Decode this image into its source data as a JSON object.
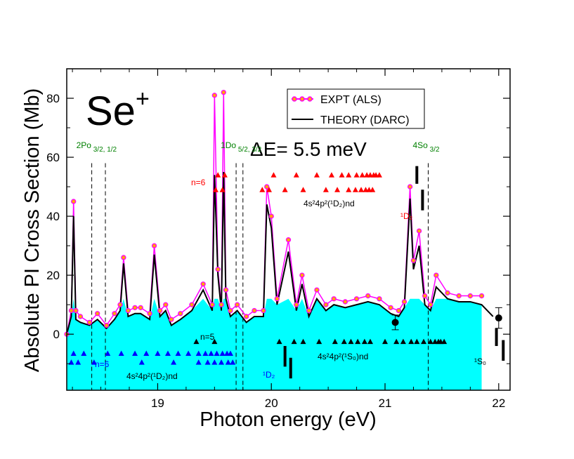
{
  "chart_data": {
    "type": "line",
    "title": "Se",
    "title_superscript": "+",
    "xlabel": "Photon energy (eV)",
    "ylabel": "Absolute PI Cross Section (Mb)",
    "xlim": [
      18.2,
      22.1
    ],
    "ylim": [
      -19,
      90
    ],
    "xticks": [
      19,
      20,
      21,
      22
    ],
    "yticks": [
      0,
      20,
      40,
      60,
      80
    ],
    "resolution_label": "ΔE= 5.5 meV",
    "legend": {
      "position": "top-right",
      "entries": [
        {
          "label": "EXPT (ALS)",
          "color": "#ff00ff",
          "marker": "open-circle-orange"
        },
        {
          "label": "THEORY (DARC)",
          "color": "#000000",
          "marker": "line"
        }
      ]
    },
    "colors": {
      "fill": "#00ffff",
      "expt": "#ff00ff",
      "expt_marker": "#ffa500",
      "theory": "#000000",
      "red_marker": "#ff0000",
      "blue_marker": "#0000ff",
      "green_label": "#008000"
    },
    "series": [
      {
        "name": "EXPT (ALS)",
        "x": [
          18.2,
          18.24,
          18.26,
          18.28,
          18.32,
          18.4,
          18.47,
          18.55,
          18.62,
          18.67,
          18.7,
          18.74,
          18.8,
          18.85,
          18.93,
          18.97,
          19.02,
          19.07,
          19.12,
          19.2,
          19.3,
          19.4,
          19.48,
          19.5,
          19.53,
          19.56,
          19.58,
          19.6,
          19.64,
          19.7,
          19.78,
          19.85,
          19.93,
          19.96,
          20.0,
          20.05,
          20.15,
          20.22,
          20.27,
          20.33,
          20.4,
          20.48,
          20.55,
          20.65,
          20.75,
          20.85,
          20.95,
          21.05,
          21.12,
          21.17,
          21.22,
          21.25,
          21.3,
          21.35,
          21.4,
          21.45,
          21.55,
          21.65,
          21.75,
          21.85
        ],
        "y": [
          0,
          8,
          45,
          8,
          6,
          4,
          7,
          3,
          7,
          10,
          26,
          8,
          9,
          9,
          7,
          30,
          8,
          10,
          5,
          7,
          10,
          17,
          10,
          81,
          22,
          10,
          82,
          15,
          8,
          10,
          6,
          8,
          8,
          50,
          40,
          12,
          32,
          10,
          20,
          8,
          15,
          10,
          12,
          11,
          12,
          13,
          12,
          9,
          8,
          11,
          50,
          25,
          35,
          13,
          10,
          20,
          14,
          13,
          13,
          13
        ]
      },
      {
        "name": "THEORY (DARC)",
        "x": [
          18.2,
          18.24,
          18.26,
          18.28,
          18.32,
          18.4,
          18.47,
          18.55,
          18.62,
          18.67,
          18.7,
          18.74,
          18.8,
          18.85,
          18.93,
          18.97,
          19.02,
          19.07,
          19.12,
          19.2,
          19.3,
          19.4,
          19.48,
          19.5,
          19.53,
          19.56,
          19.58,
          19.6,
          19.64,
          19.7,
          19.78,
          19.85,
          19.93,
          19.96,
          20.0,
          20.05,
          20.15,
          20.22,
          20.27,
          20.33,
          20.4,
          20.48,
          20.55,
          20.65,
          20.75,
          20.85,
          20.95,
          21.05,
          21.12,
          21.17,
          21.22,
          21.25,
          21.3,
          21.35,
          21.4,
          21.45,
          21.55,
          21.65,
          21.75,
          21.85,
          21.95
        ],
        "y": [
          0,
          6,
          40,
          5,
          4,
          3,
          5,
          2,
          5,
          8,
          24,
          6,
          7,
          7,
          5,
          27,
          6,
          8,
          3,
          5,
          8,
          15,
          8,
          54,
          20,
          8,
          55,
          12,
          6,
          8,
          4,
          6,
          6,
          44,
          36,
          10,
          28,
          8,
          17,
          6,
          12,
          8,
          10,
          9,
          10,
          11,
          10,
          7,
          6,
          9,
          46,
          22,
          30,
          10,
          8,
          16,
          12,
          11,
          11,
          10,
          6
        ]
      }
    ],
    "error_points": [
      {
        "x": 21.09,
        "y": 4,
        "err": 2.5
      },
      {
        "x": 22.0,
        "y": 5.5,
        "err": 3.5
      }
    ],
    "cyan_fill_end_x": 21.85,
    "dashed_lines": [
      {
        "x": 18.42,
        "label": "2Po",
        "label_sub": "3/2, 1/2"
      },
      {
        "x": 18.54
      },
      {
        "x": 19.69,
        "label": "1Do",
        "label_sub": "5/2, 3/2"
      },
      {
        "x": 19.75
      },
      {
        "x": 21.38,
        "label": "4So",
        "label_sub": "3/2"
      }
    ],
    "annotations": {
      "red_n": "n=6",
      "black_n": "n=5",
      "blue_n": "n=6",
      "red_series_label": "4s²4p²(¹D₂)nd",
      "black_series_label": "4s²4p²(¹S₀)nd",
      "blue_series_label": "4s²4p²(¹D₂)nd",
      "d2_red": "¹D₂",
      "d2_blue": "¹D₂",
      "s0_label": "¹S₀"
    },
    "red_triangles": {
      "row1_y": 54,
      "row1_x": [
        19.53,
        19.59,
        20.02,
        20.22,
        20.4,
        20.53,
        20.62,
        20.68,
        20.75,
        20.8,
        20.84,
        20.87,
        20.9,
        20.92,
        20.95
      ],
      "row2_y": 49,
      "row2_x": [
        19.51,
        19.57,
        19.92,
        19.98,
        20.12,
        20.28,
        20.48,
        20.58,
        20.68,
        20.74,
        20.79,
        20.83,
        20.86,
        20.89
      ]
    },
    "black_triangles": {
      "row_y": -2.5,
      "x": [
        19.34,
        19.5,
        20.07,
        20.2,
        20.28,
        20.42,
        20.56,
        20.64,
        20.7,
        20.76,
        20.82,
        20.87,
        21.0,
        21.1,
        21.16,
        21.23,
        21.28,
        21.34,
        21.4,
        21.44,
        21.47,
        21.49,
        21.52
      ]
    },
    "blue_triangles": {
      "row1_y": -6.5,
      "row1_x": [
        18.26,
        18.35,
        18.56,
        18.68,
        18.8,
        18.9,
        19.0,
        19.09,
        19.18,
        19.27,
        19.36,
        19.42,
        19.47,
        19.52,
        19.57,
        19.61,
        19.64
      ],
      "row2_y": -9.5,
      "row2_x": [
        18.24,
        18.3,
        18.44,
        18.86,
        19.14,
        19.36,
        19.44,
        19.5,
        19.56,
        19.62,
        19.66
      ]
    },
    "sticks": [
      {
        "x": 20.12,
        "y1": -4,
        "y2": -11,
        "color": "#000000"
      },
      {
        "x": 20.17,
        "y1": -8,
        "y2": -15,
        "color": "#000000"
      },
      {
        "x": 21.28,
        "y1": 57,
        "y2": 51,
        "color": "#000000"
      },
      {
        "x": 21.33,
        "y1": 49,
        "y2": 42,
        "color": "#000000"
      },
      {
        "x": 21.98,
        "y1": 2,
        "y2": -4,
        "color": "#000000"
      },
      {
        "x": 22.04,
        "y1": -2,
        "y2": -9,
        "color": "#000000"
      }
    ]
  }
}
